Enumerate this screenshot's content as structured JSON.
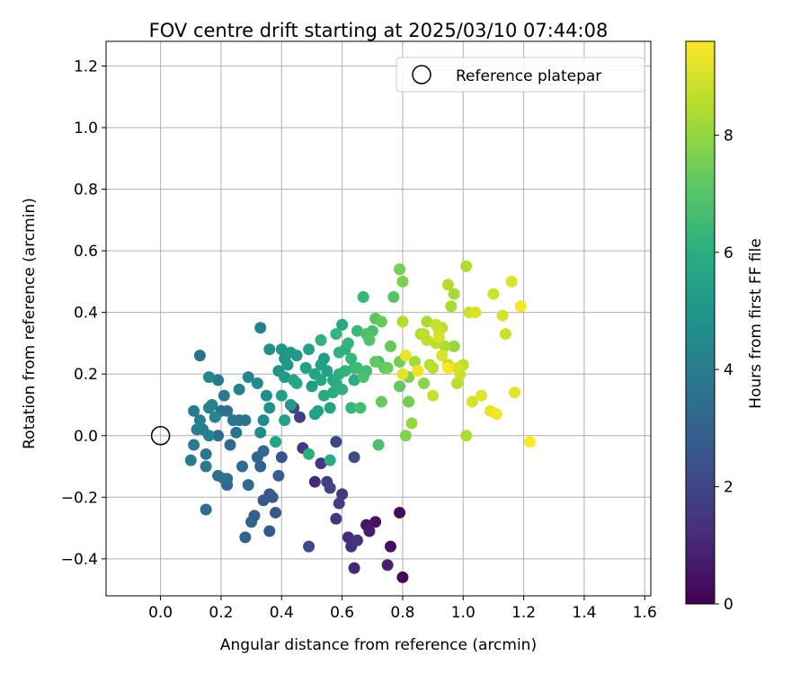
{
  "chart_data": {
    "type": "scatter",
    "title": "FOV centre drift starting at 2025/03/10 07:44:08",
    "xlabel": "Angular distance from reference (arcmin)",
    "ylabel": "Rotation from reference (arcmin)",
    "xlim": [
      -0.18,
      1.62
    ],
    "ylim": [
      -0.52,
      1.28
    ],
    "xticks": [
      0.0,
      0.2,
      0.4,
      0.6,
      0.8,
      1.0,
      1.2,
      1.4,
      1.6
    ],
    "xtick_labels": [
      "0.0",
      "0.2",
      "0.4",
      "0.6",
      "0.8",
      "1.0",
      "1.2",
      "1.4",
      "1.6"
    ],
    "yticks": [
      -0.4,
      -0.2,
      0.0,
      0.2,
      0.4,
      0.6,
      0.8,
      1.0,
      1.2
    ],
    "ytick_labels": [
      "−0.4",
      "−0.2",
      "0.0",
      "0.2",
      "0.4",
      "0.6",
      "0.8",
      "1.0",
      "1.2"
    ],
    "grid": true,
    "legend": {
      "placement": "top-right",
      "entries": [
        "Reference platepar"
      ]
    },
    "reference_point": {
      "x": 0.0,
      "y": 0.0
    },
    "colorbar": {
      "label": "Hours from first FF file",
      "range": [
        0,
        9.6
      ],
      "ticks": [
        0,
        2,
        4,
        6,
        8
      ],
      "tick_labels": [
        "0",
        "2",
        "4",
        "6",
        "8"
      ],
      "colormap": "viridis"
    },
    "points": [
      [
        0.8,
        -0.46,
        0.2
      ],
      [
        0.79,
        -0.25,
        0.3
      ],
      [
        0.76,
        -0.36,
        0.4
      ],
      [
        0.71,
        -0.28,
        0.5
      ],
      [
        0.68,
        -0.29,
        0.6
      ],
      [
        0.69,
        -0.31,
        0.7
      ],
      [
        0.75,
        -0.42,
        0.9
      ],
      [
        0.64,
        -0.43,
        1.0
      ],
      [
        0.62,
        -0.33,
        1.2
      ],
      [
        0.63,
        -0.36,
        1.3
      ],
      [
        0.65,
        -0.34,
        1.4
      ],
      [
        0.58,
        -0.27,
        1.5
      ],
      [
        0.6,
        -0.19,
        1.6
      ],
      [
        0.59,
        -0.22,
        1.7
      ],
      [
        0.55,
        -0.15,
        1.8
      ],
      [
        0.56,
        -0.17,
        1.9
      ],
      [
        0.51,
        -0.15,
        1.1
      ],
      [
        0.53,
        -0.09,
        1.5
      ],
      [
        0.49,
        -0.36,
        2.1
      ],
      [
        0.64,
        -0.07,
        2.2
      ],
      [
        0.58,
        -0.02,
        2.0
      ],
      [
        0.47,
        -0.04,
        1.6
      ],
      [
        0.46,
        0.06,
        1.7
      ],
      [
        0.44,
        0.09,
        2.0
      ],
      [
        0.4,
        -0.07,
        2.4
      ],
      [
        0.36,
        -0.19,
        2.5
      ],
      [
        0.38,
        -0.25,
        2.6
      ],
      [
        0.34,
        -0.21,
        2.7
      ],
      [
        0.36,
        -0.31,
        2.7
      ],
      [
        0.37,
        -0.2,
        2.8
      ],
      [
        0.31,
        -0.26,
        2.9
      ],
      [
        0.3,
        -0.28,
        3.0
      ],
      [
        0.28,
        -0.33,
        3.1
      ],
      [
        0.39,
        -0.13,
        2.9
      ],
      [
        0.33,
        -0.1,
        3.0
      ],
      [
        0.32,
        -0.07,
        3.1
      ],
      [
        0.34,
        -0.05,
        3.2
      ],
      [
        0.29,
        -0.16,
        3.2
      ],
      [
        0.22,
        -0.16,
        3.3
      ],
      [
        0.22,
        -0.14,
        3.4
      ],
      [
        0.19,
        -0.13,
        3.5
      ],
      [
        0.21,
        -0.14,
        3.6
      ],
      [
        0.15,
        -0.24,
        3.5
      ],
      [
        0.27,
        -0.1,
        3.4
      ],
      [
        0.23,
        -0.03,
        3.3
      ],
      [
        0.19,
        -0.0,
        3.3
      ],
      [
        0.2,
        0.08,
        3.4
      ],
      [
        0.22,
        0.08,
        3.5
      ],
      [
        0.24,
        0.05,
        3.6
      ],
      [
        0.25,
        0.01,
        3.6
      ],
      [
        0.28,
        0.05,
        3.7
      ],
      [
        0.26,
        0.05,
        3.7
      ],
      [
        0.15,
        -0.06,
        3.8
      ],
      [
        0.15,
        -0.1,
        3.9
      ],
      [
        0.1,
        -0.08,
        4.0
      ],
      [
        0.11,
        -0.03,
        4.0
      ],
      [
        0.12,
        0.02,
        4.1
      ],
      [
        0.13,
        0.05,
        4.2
      ],
      [
        0.14,
        0.02,
        4.1
      ],
      [
        0.16,
        0.0,
        4.3
      ],
      [
        0.16,
        0.09,
        4.2
      ],
      [
        0.17,
        0.1,
        4.3
      ],
      [
        0.18,
        0.06,
        4.4
      ],
      [
        0.11,
        0.08,
        4.0
      ],
      [
        0.13,
        0.26,
        3.5
      ],
      [
        0.19,
        0.18,
        3.8
      ],
      [
        0.21,
        0.13,
        4.0
      ],
      [
        0.26,
        0.15,
        4.2
      ],
      [
        0.29,
        0.19,
        4.4
      ],
      [
        0.32,
        0.17,
        4.5
      ],
      [
        0.34,
        0.05,
        4.6
      ],
      [
        0.33,
        0.01,
        4.6
      ],
      [
        0.35,
        0.13,
        4.7
      ],
      [
        0.36,
        0.09,
        4.8
      ],
      [
        0.16,
        0.19,
        4.6
      ],
      [
        0.33,
        0.35,
        4.2
      ],
      [
        0.36,
        0.28,
        4.8
      ],
      [
        0.39,
        0.21,
        4.9
      ],
      [
        0.4,
        0.28,
        5.0
      ],
      [
        0.41,
        0.25,
        5.0
      ],
      [
        0.42,
        0.23,
        5.1
      ],
      [
        0.43,
        0.27,
        5.2
      ],
      [
        0.45,
        0.26,
        5.2
      ],
      [
        0.41,
        0.19,
        5.3
      ],
      [
        0.4,
        0.13,
        5.4
      ],
      [
        0.38,
        -0.02,
        5.6
      ],
      [
        0.41,
        0.05,
        5.5
      ],
      [
        0.43,
        0.1,
        5.1
      ],
      [
        0.44,
        0.18,
        5.6
      ],
      [
        0.45,
        0.17,
        5.7
      ],
      [
        0.48,
        0.22,
        5.4
      ],
      [
        0.49,
        0.28,
        5.5
      ],
      [
        0.5,
        0.16,
        5.3
      ],
      [
        0.51,
        0.2,
        5.6
      ],
      [
        0.51,
        0.07,
        5.4
      ],
      [
        0.52,
        0.08,
        5.5
      ],
      [
        0.53,
        0.18,
        5.7
      ],
      [
        0.53,
        0.23,
        5.5
      ],
      [
        0.54,
        0.13,
        5.8
      ],
      [
        0.54,
        0.25,
        5.3
      ],
      [
        0.55,
        0.21,
        5.5
      ],
      [
        0.56,
        0.09,
        5.6
      ],
      [
        0.56,
        -0.08,
        5.9
      ],
      [
        0.49,
        -0.06,
        6.0
      ],
      [
        0.53,
        0.31,
        6.1
      ],
      [
        0.57,
        0.14,
        5.9
      ],
      [
        0.57,
        0.18,
        5.8
      ],
      [
        0.58,
        0.17,
        5.9
      ],
      [
        0.58,
        0.33,
        6.3
      ],
      [
        0.59,
        0.27,
        6.2
      ],
      [
        0.59,
        0.2,
        6.0
      ],
      [
        0.6,
        0.36,
        5.7
      ],
      [
        0.6,
        0.15,
        6.1
      ],
      [
        0.61,
        0.21,
        6.2
      ],
      [
        0.61,
        0.28,
        6.0
      ],
      [
        0.62,
        0.3,
        6.3
      ],
      [
        0.63,
        0.25,
        6.4
      ],
      [
        0.63,
        0.09,
        6.4
      ],
      [
        0.64,
        0.22,
        6.5
      ],
      [
        0.64,
        0.18,
        5.9
      ],
      [
        0.65,
        0.34,
        6.5
      ],
      [
        0.65,
        0.22,
        6.6
      ],
      [
        0.66,
        0.09,
        6.7
      ],
      [
        0.67,
        0.19,
        6.8
      ],
      [
        0.67,
        0.45,
        6.4
      ],
      [
        0.68,
        0.21,
        6.6
      ],
      [
        0.68,
        0.33,
        6.9
      ],
      [
        0.69,
        0.31,
        7.0
      ],
      [
        0.7,
        0.34,
        6.8
      ],
      [
        0.71,
        0.38,
        7.1
      ],
      [
        0.71,
        0.24,
        7.2
      ],
      [
        0.72,
        0.24,
        6.5
      ],
      [
        0.72,
        -0.03,
        6.8
      ],
      [
        0.73,
        0.37,
        7.3
      ],
      [
        0.73,
        0.11,
        7.3
      ],
      [
        0.74,
        0.22,
        7.2
      ],
      [
        0.75,
        0.22,
        7.4
      ],
      [
        0.76,
        0.29,
        7.3
      ],
      [
        0.77,
        0.45,
        7.0
      ],
      [
        0.79,
        0.16,
        7.2
      ],
      [
        0.79,
        0.24,
        7.5
      ],
      [
        0.79,
        0.54,
        7.6
      ],
      [
        0.8,
        0.5,
        7.7
      ],
      [
        0.81,
        0.0,
        7.8
      ],
      [
        0.82,
        0.11,
        7.6
      ],
      [
        0.82,
        0.19,
        7.7
      ],
      [
        0.83,
        0.04,
        8.1
      ],
      [
        0.84,
        0.24,
        8.3
      ],
      [
        0.8,
        0.37,
        8.5
      ],
      [
        0.86,
        0.33,
        8.4
      ],
      [
        0.87,
        0.33,
        8.6
      ],
      [
        0.87,
        0.17,
        7.9
      ],
      [
        0.88,
        0.31,
        8.7
      ],
      [
        0.88,
        0.37,
        8.4
      ],
      [
        0.89,
        0.23,
        8.5
      ],
      [
        0.9,
        0.22,
        8.6
      ],
      [
        0.9,
        0.13,
        8.8
      ],
      [
        0.91,
        0.3,
        8.7
      ],
      [
        0.91,
        0.36,
        8.8
      ],
      [
        0.92,
        0.34,
        8.9
      ],
      [
        0.92,
        0.32,
        9.0
      ],
      [
        0.93,
        0.26,
        9.1
      ],
      [
        0.93,
        0.35,
        8.6
      ],
      [
        0.94,
        0.29,
        8.4
      ],
      [
        0.95,
        0.49,
        8.5
      ],
      [
        0.95,
        0.23,
        8.7
      ],
      [
        0.96,
        0.42,
        8.4
      ],
      [
        0.97,
        0.46,
        8.3
      ],
      [
        0.97,
        0.29,
        8.1
      ],
      [
        0.98,
        0.17,
        8.6
      ],
      [
        0.98,
        0.22,
        9.0
      ],
      [
        0.99,
        0.2,
        8.9
      ],
      [
        1.0,
        0.23,
        8.7
      ],
      [
        1.01,
        0.55,
        8.5
      ],
      [
        1.01,
        0.0,
        8.4
      ],
      [
        1.02,
        0.4,
        8.9
      ],
      [
        1.03,
        0.11,
        9.0
      ],
      [
        1.04,
        0.4,
        9.1
      ],
      [
        1.06,
        0.13,
        9.2
      ],
      [
        1.09,
        0.08,
        9.3
      ],
      [
        1.1,
        0.46,
        8.9
      ],
      [
        1.11,
        0.07,
        9.4
      ],
      [
        1.13,
        0.39,
        9.0
      ],
      [
        1.14,
        0.33,
        8.9
      ],
      [
        1.16,
        0.5,
        9.1
      ],
      [
        1.17,
        0.14,
        9.2
      ],
      [
        1.19,
        0.42,
        9.5
      ],
      [
        1.22,
        -0.02,
        9.6
      ],
      [
        0.8,
        0.2,
        9.2
      ],
      [
        0.81,
        0.26,
        9.3
      ],
      [
        0.85,
        0.21,
        9.4
      ],
      [
        0.95,
        0.22,
        9.5
      ]
    ]
  }
}
